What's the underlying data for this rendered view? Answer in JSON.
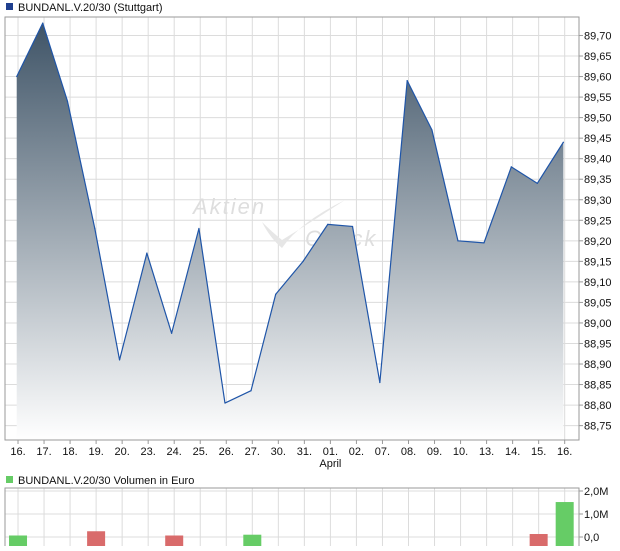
{
  "colors": {
    "price_line": "#1f55a8",
    "fill_top": "#3f5467",
    "fill_bottom": "#ffffff",
    "grid": "#dcdcdc",
    "border": "#9a9a9a",
    "volume_up": "#66cc66",
    "volume_down": "#d96b6b",
    "legend_price_swatch": "#1f3f8f",
    "legend_volume_swatch": "#66cc66",
    "watermark": "#dedede"
  },
  "watermark": {
    "word1": "Aktien",
    "word2": "Check"
  },
  "chart_data": [
    {
      "type": "area",
      "legend": "BUNDANL.V.20/30 (Stuttgart)",
      "x_ticks": [
        "16.",
        "17.",
        "18.",
        "19.",
        "20.",
        "23.",
        "24.",
        "25.",
        "26.",
        "27.",
        "30.",
        "31.",
        "01.",
        "02.",
        "07.",
        "08.",
        "09.",
        "10.",
        "13.",
        "14.",
        "15.",
        "16."
      ],
      "month_label": {
        "text": "April",
        "at_tick_index": 12
      },
      "y_tick_labels": [
        "88,75",
        "88,80",
        "88,85",
        "88,90",
        "88,95",
        "89,00",
        "89,05",
        "89,10",
        "89,15",
        "89,20",
        "89,25",
        "89,30",
        "89,35",
        "89,40",
        "89,45",
        "89,50",
        "89,55",
        "89,60",
        "89,65",
        "89,70"
      ],
      "y_ticks": [
        88.75,
        88.8,
        88.85,
        88.9,
        88.95,
        89.0,
        89.05,
        89.1,
        89.15,
        89.2,
        89.25,
        89.3,
        89.35,
        89.4,
        89.45,
        89.5,
        89.55,
        89.6,
        89.65,
        89.7
      ],
      "ylim": [
        88.715,
        89.745
      ],
      "xlim": [
        -0.5,
        21.55
      ],
      "grid": true,
      "series": [
        {
          "x": [
            -0.05,
            0.95,
            1.9,
            2.95,
            3.9,
            4.95,
            5.9,
            6.95,
            7.95,
            8.95,
            9.9,
            10.95,
            11.9,
            12.85,
            13.9,
            14.95,
            15.9,
            16.9,
            17.9,
            18.95,
            19.95,
            20.95
          ],
          "values": [
            89.6,
            89.73,
            89.54,
            89.23,
            88.91,
            89.17,
            88.975,
            89.23,
            88.805,
            88.835,
            89.07,
            89.15,
            89.24,
            89.235,
            88.855,
            89.59,
            89.47,
            89.2,
            89.195,
            89.38,
            89.34,
            89.44
          ]
        }
      ]
    },
    {
      "type": "bar",
      "legend": "BUNDANL.V.20/30 Volumen in Euro",
      "y_tick_labels": [
        "0,0",
        "1,0M",
        "2,0M"
      ],
      "y_ticks": [
        0,
        1000000,
        2000000
      ],
      "ylim": [
        0,
        2000000
      ],
      "grid": true,
      "bars": [
        {
          "x": 0,
          "value": 20000,
          "direction": "up"
        },
        {
          "x": 3,
          "value": 250000,
          "direction": "down"
        },
        {
          "x": 6,
          "value": 60000,
          "direction": "down"
        },
        {
          "x": 9,
          "value": 100000,
          "direction": "up"
        },
        {
          "x": 20,
          "value": 130000,
          "direction": "down"
        },
        {
          "x": 21,
          "value": 1520000,
          "direction": "up"
        }
      ]
    }
  ]
}
